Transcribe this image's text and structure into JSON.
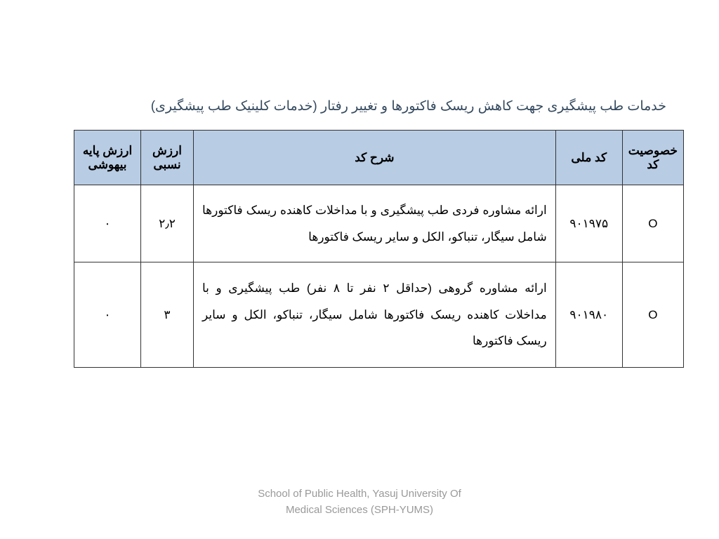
{
  "title": "خدمات طب پیشگیری جهت کاهش ریسک فاکتورها و تغییر رفتار (خدمات کلینیک طب پیشگیری)",
  "table": {
    "headers": {
      "specificity": "خصوصیت کد",
      "national_code": "کد ملی",
      "description": "شرح کد",
      "relative_value": "ارزش نسبی",
      "base_anesthesia": "ارزش پایه بیهوشی"
    },
    "rows": [
      {
        "specificity": "O",
        "national_code": "۹۰۱۹۷۵",
        "description": "ارائه مشاوره فردی طب پیشگیری و با مداخلات کاهنده ریسک فاکتورها شامل سیگار، تنباکو، الکل و سایر ریسک فاکتورها",
        "relative_value": "۲٫۲",
        "base_anesthesia": "۰"
      },
      {
        "specificity": "O",
        "national_code": "۹۰۱۹۸۰",
        "description": "ارائه مشاوره گروهی (حداقل ۲ نفر تا ۸ نفر) طب پیشگیری و با مداخلات کاهنده ریسک فاکتورها شامل سیگار، تنباکو، الکل و سایر ریسک فاکتورها",
        "relative_value": "۳",
        "base_anesthesia": "۰"
      }
    ]
  },
  "footer": {
    "line1": "School of Public Health, Yasuj University Of",
    "line2": "Medical Sciences (SPH-YUMS)"
  },
  "styling": {
    "header_bg": "#b8cce4",
    "border_color": "#333333",
    "title_color": "#34495e",
    "footer_color": "#999999",
    "page_bg": "#ffffff",
    "title_fontsize": 19,
    "header_fontsize": 17,
    "cell_fontsize": 17,
    "footer_fontsize": 15
  }
}
